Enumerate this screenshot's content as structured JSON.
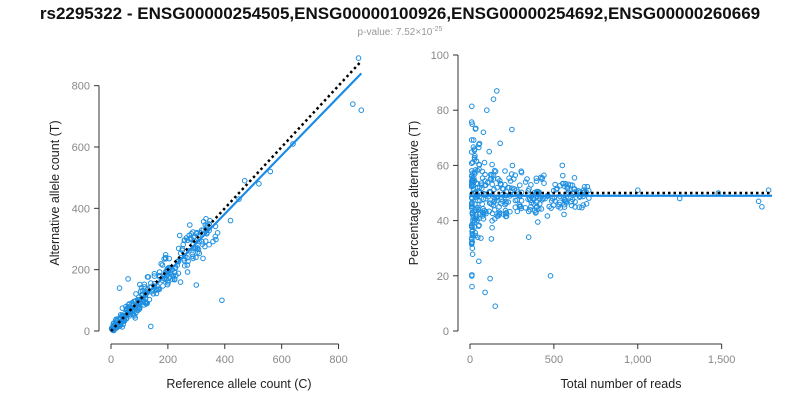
{
  "title": "rs2295322 - ENSG00000254505,ENSG00000100926,ENSG00000254692,ENSG00000260669",
  "subtitle": {
    "prefix": "p-value: 7.52×10",
    "exponent": "-25"
  },
  "colors": {
    "points": "#1f8fe0",
    "fit": "#1a8ce8",
    "reference": "#000000",
    "axis": "#333333",
    "tick_text": "#888888"
  },
  "chart_data": [
    {
      "type": "scatter",
      "xlabel": "Reference allele count (C)",
      "ylabel": "Alternative allele count (T)",
      "xlim": [
        0,
        900
      ],
      "ylim": [
        0,
        900
      ],
      "xticks": [
        0,
        200,
        400,
        600,
        800
      ],
      "yticks": [
        0,
        200,
        400,
        600,
        800
      ],
      "xtick_labels": [
        "0",
        "200",
        "400",
        "600",
        "800"
      ],
      "ytick_labels": [
        "0",
        "200",
        "400",
        "600",
        "800"
      ],
      "reference_line": {
        "style": "dotted",
        "x": [
          0,
          880
        ],
        "y": [
          0,
          880
        ]
      },
      "fit_line": {
        "x": [
          0,
          880
        ],
        "y": [
          0,
          840
        ]
      },
      "outliers": [
        {
          "x": 870,
          "y": 890
        },
        {
          "x": 880,
          "y": 720
        },
        {
          "x": 850,
          "y": 740
        },
        {
          "x": 640,
          "y": 610
        },
        {
          "x": 560,
          "y": 520
        },
        {
          "x": 470,
          "y": 490
        },
        {
          "x": 390,
          "y": 100
        },
        {
          "x": 300,
          "y": 150
        },
        {
          "x": 140,
          "y": 15
        },
        {
          "x": 30,
          "y": 140
        },
        {
          "x": 60,
          "y": 170
        },
        {
          "x": 420,
          "y": 360
        },
        {
          "x": 450,
          "y": 430
        },
        {
          "x": 520,
          "y": 480
        }
      ],
      "cloud": {
        "n": 360,
        "max_total": 700,
        "ratio_sd": 0.1
      }
    },
    {
      "type": "scatter",
      "xlabel": "Total number of reads",
      "ylabel": "Percentage alternative (T)",
      "xlim": [
        0,
        1800
      ],
      "ylim": [
        0,
        100
      ],
      "xticks": [
        0,
        500,
        1000,
        1500
      ],
      "yticks": [
        0,
        20,
        40,
        60,
        80,
        100
      ],
      "xtick_labels": [
        "0",
        "500",
        "1,000",
        "1,500"
      ],
      "ytick_labels": [
        "0",
        "20",
        "40",
        "60",
        "80",
        "100"
      ],
      "reference_line": {
        "style": "dotted",
        "x": [
          0,
          1800
        ],
        "y": [
          50,
          50
        ]
      },
      "fit_line": {
        "x": [
          0,
          1800
        ],
        "y": [
          49,
          49
        ]
      },
      "outliers": [
        {
          "x": 160,
          "y": 87
        },
        {
          "x": 140,
          "y": 84
        },
        {
          "x": 100,
          "y": 80
        },
        {
          "x": 250,
          "y": 73
        },
        {
          "x": 80,
          "y": 72
        },
        {
          "x": 180,
          "y": 68
        },
        {
          "x": 120,
          "y": 19
        },
        {
          "x": 150,
          "y": 9
        },
        {
          "x": 90,
          "y": 14
        },
        {
          "x": 480,
          "y": 20
        },
        {
          "x": 350,
          "y": 34
        },
        {
          "x": 550,
          "y": 60
        },
        {
          "x": 1250,
          "y": 48
        },
        {
          "x": 1480,
          "y": 50
        },
        {
          "x": 1720,
          "y": 47
        },
        {
          "x": 1740,
          "y": 45
        },
        {
          "x": 1780,
          "y": 51
        },
        {
          "x": 1000,
          "y": 51
        }
      ],
      "cloud": {
        "n": 380,
        "max_total": 900,
        "ratio_sd": 0.1
      }
    }
  ]
}
